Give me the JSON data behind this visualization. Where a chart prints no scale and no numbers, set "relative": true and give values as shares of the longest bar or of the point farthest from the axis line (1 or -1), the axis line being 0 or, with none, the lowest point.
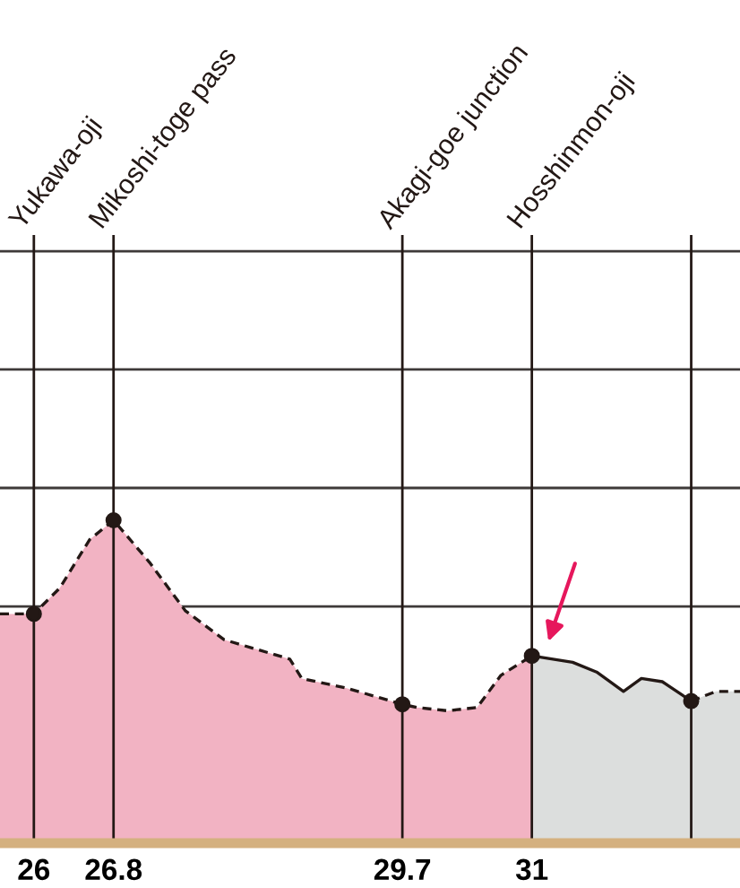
{
  "chart_data": {
    "type": "area",
    "relative": true,
    "xlim": [
      25.66,
      33.09
    ],
    "xticks": [
      26,
      26.8,
      29.7,
      31
    ],
    "grid": "x",
    "ref_lines": [
      {
        "axis": "y",
        "value": 0.733,
        "color": "#3e3a39"
      },
      {
        "axis": "y",
        "value": 1.1,
        "color": "#3e3a39"
      },
      {
        "axis": "y",
        "value": 1.467,
        "color": "#3e3a39"
      },
      {
        "axis": "y",
        "value": 1.833,
        "color": "#3e3a39"
      }
    ],
    "annotations": [
      "Yukawa-oji",
      "Mikoshi-toge pass",
      "Akagi-goe junction",
      "Hosshinmon-oji"
    ],
    "series": [
      {
        "color": "#f2b3c3",
        "line_style": "dashed",
        "x": [
          25.66,
          26.0,
          26.26,
          26.56,
          26.8,
          27.16,
          27.52,
          27.91,
          28.24,
          28.57,
          28.69,
          29.14,
          29.7,
          29.85,
          30.15,
          30.45,
          30.69,
          31.0
        ],
        "values": [
          0.71,
          0.71,
          0.79,
          0.94,
          1.0,
          0.87,
          0.72,
          0.63,
          0.6,
          0.57,
          0.51,
          0.48,
          0.43,
          0.42,
          0.41,
          0.42,
          0.52,
          0.58
        ]
      },
      {
        "color": "#dcdedd",
        "line_style": "solid",
        "x": [
          31.0,
          31.41,
          31.65,
          31.92,
          32.1,
          32.31,
          32.6
        ],
        "values": [
          0.58,
          0.56,
          0.53,
          0.47,
          0.51,
          0.5,
          0.44
        ]
      },
      {
        "color": "#dcdedd",
        "line_style": "dashed",
        "x": [
          32.6,
          32.85,
          33.09
        ],
        "values": [
          0.44,
          0.47,
          0.47
        ]
      },
      {
        "type": "scatter",
        "color": "#231815",
        "marker": "circle",
        "x": [
          26,
          26.8,
          29.7,
          31,
          32.6
        ],
        "values": [
          0.71,
          1.0,
          0.43,
          0.58,
          0.44
        ]
      }
    ]
  }
}
